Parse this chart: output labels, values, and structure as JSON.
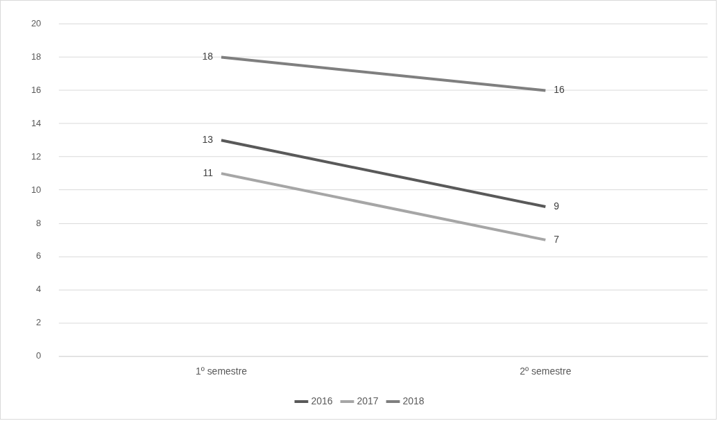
{
  "chart_data": {
    "type": "line",
    "categories": [
      "1º semestre",
      "2º semestre"
    ],
    "series": [
      {
        "name": "2016",
        "color": "#595959",
        "values": [
          13,
          9
        ]
      },
      {
        "name": "2017",
        "color": "#a6a6a6",
        "values": [
          11,
          7
        ]
      },
      {
        "name": "2018",
        "color": "#7f7f7f",
        "values": [
          18,
          16
        ]
      }
    ],
    "ylim": [
      0,
      20
    ],
    "yticks": [
      0,
      2,
      4,
      6,
      8,
      10,
      12,
      14,
      16,
      18,
      20
    ],
    "grid": "y",
    "legend": "bottom",
    "data_labels": true,
    "marker": "none",
    "line_style": "solid"
  }
}
